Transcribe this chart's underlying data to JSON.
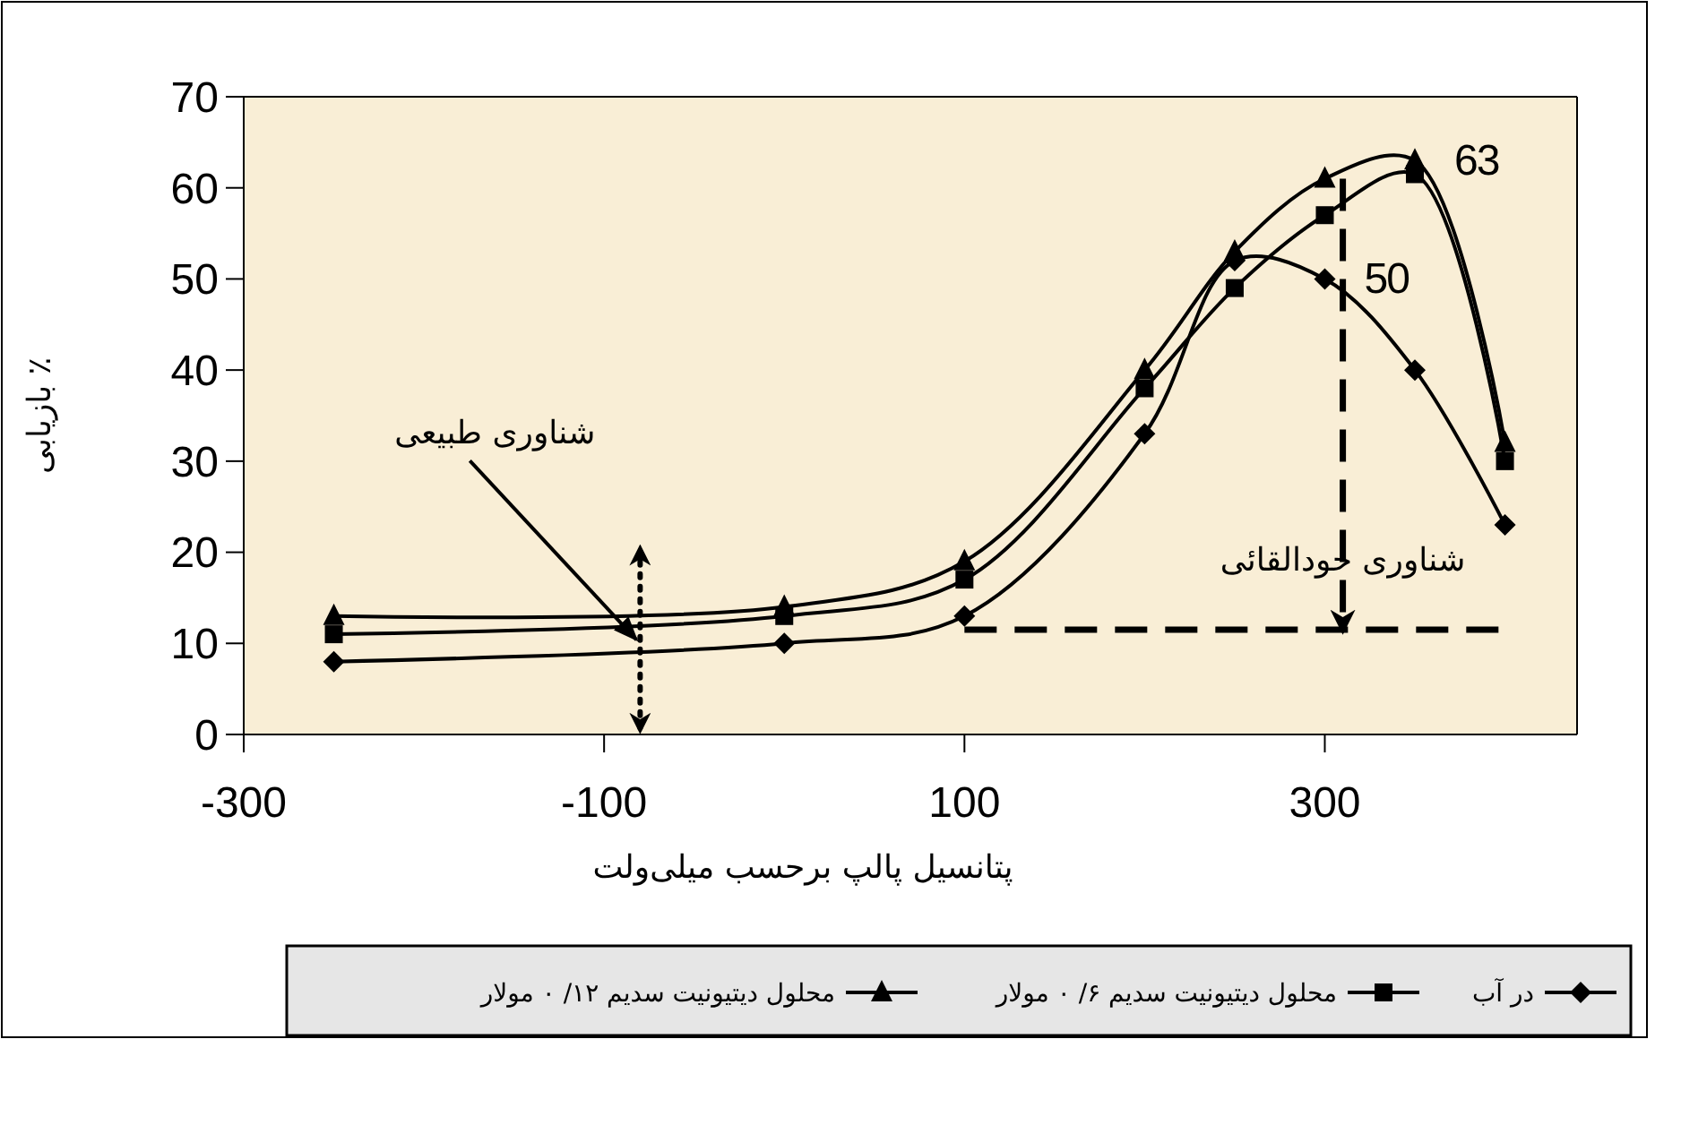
{
  "chart_data": {
    "type": "line",
    "xlabel": "پتانسیل پالپ برحسب میلی‌ولت",
    "ylabel": "بازیابی ٪",
    "xlim": [
      -300,
      440
    ],
    "xticks": [
      -300,
      -100,
      100,
      300
    ],
    "ylim": [
      0,
      70
    ],
    "yticks": [
      0,
      10,
      20,
      30,
      40,
      50,
      60,
      70
    ],
    "grid": false,
    "legend": "bottom",
    "annotations": [
      {
        "text": "شناوری طبیعی",
        "x": -80,
        "y": 10
      },
      "شناوری خودالقائی"
    ],
    "series": [
      {
        "name": "در آب",
        "color": "#000000",
        "marker": "diamond",
        "x": [
          -250,
          0,
          100,
          200,
          250,
          300,
          350,
          400
        ],
        "values": [
          8,
          10,
          13,
          33,
          52,
          50,
          40,
          23
        ],
        "value_labels": [
          null,
          null,
          null,
          null,
          null,
          "50",
          null,
          null
        ]
      },
      {
        "name": "محلول دیتیونیت سدیم ۶/ ۰ مولار",
        "color": "#000000",
        "marker": "square",
        "x": [
          -250,
          0,
          100,
          200,
          250,
          300,
          350,
          400
        ],
        "values": [
          11,
          13,
          17,
          38,
          49,
          57,
          61.5,
          30
        ]
      },
      {
        "name": "محلول دیتیونیت سدیم ۱۲/ ۰ مولار",
        "color": "#000000",
        "marker": "triangle",
        "x": [
          -250,
          0,
          100,
          200,
          250,
          300,
          350,
          400
        ],
        "values": [
          13,
          14,
          19,
          40,
          53,
          61,
          63,
          32
        ],
        "value_labels": [
          null,
          null,
          null,
          null,
          null,
          null,
          "63",
          null
        ]
      },
      {
        "color": "#000000",
        "marker": "none",
        "line_style": "dashed",
        "x": [
          100,
          400
        ],
        "values": [
          11.5,
          11.5
        ]
      },
      {
        "color": "#000000",
        "marker": "none",
        "line_style": "dashed",
        "x": [
          310,
          310
        ],
        "values": [
          61,
          11.5
        ]
      },
      {
        "color": "#000000",
        "marker": "none",
        "line_style": "dotted",
        "x": [
          -80,
          -80
        ],
        "values": [
          19,
          0.5
        ]
      }
    ]
  }
}
